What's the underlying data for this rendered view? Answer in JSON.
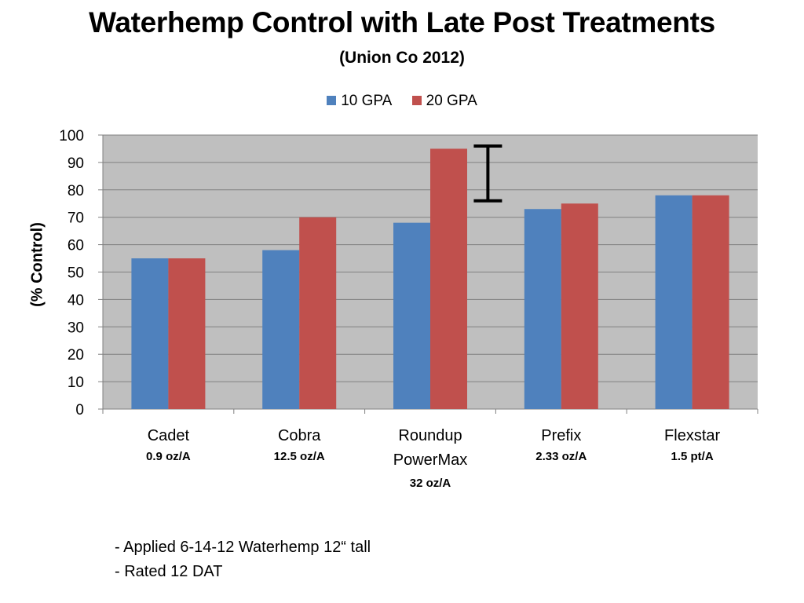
{
  "chart_data": {
    "type": "bar",
    "title": "Waterhemp Control with Late Post Treatments",
    "subtitle": "(Union Co 2012)",
    "ylabel": "(%  Control)",
    "xlabel": "",
    "ylim": [
      0,
      100
    ],
    "yticks": [
      "0",
      "10",
      "20",
      "30",
      "40",
      "50",
      "60",
      "70",
      "80",
      "90",
      "100"
    ],
    "grid": true,
    "legend_position": "top",
    "categories": [
      {
        "name_lines": [
          "Cadet"
        ],
        "rate": "0.9 oz/A"
      },
      {
        "name_lines": [
          "Cobra"
        ],
        "rate": "12.5 oz/A"
      },
      {
        "name_lines": [
          "Roundup",
          "PowerMax"
        ],
        "rate": "32 oz/A"
      },
      {
        "name_lines": [
          "Prefix"
        ],
        "rate": "2.33 oz/A"
      },
      {
        "name_lines": [
          "Flexstar"
        ],
        "rate": "1.5 pt/A"
      }
    ],
    "series": [
      {
        "name": "10 GPA",
        "color": "#4f81bd",
        "values": [
          55,
          58,
          68,
          73,
          78
        ]
      },
      {
        "name": "20 GPA",
        "color": "#c0504d",
        "values": [
          55,
          70,
          95,
          75,
          78
        ]
      }
    ],
    "error_bar": {
      "category_gap_after": 2,
      "low": 76,
      "high": 96
    },
    "plot_background": "#bfbfbf"
  },
  "notes": [
    "-  Applied 6-14-12  Waterhemp 12“ tall",
    "-  Rated 12 DAT"
  ]
}
